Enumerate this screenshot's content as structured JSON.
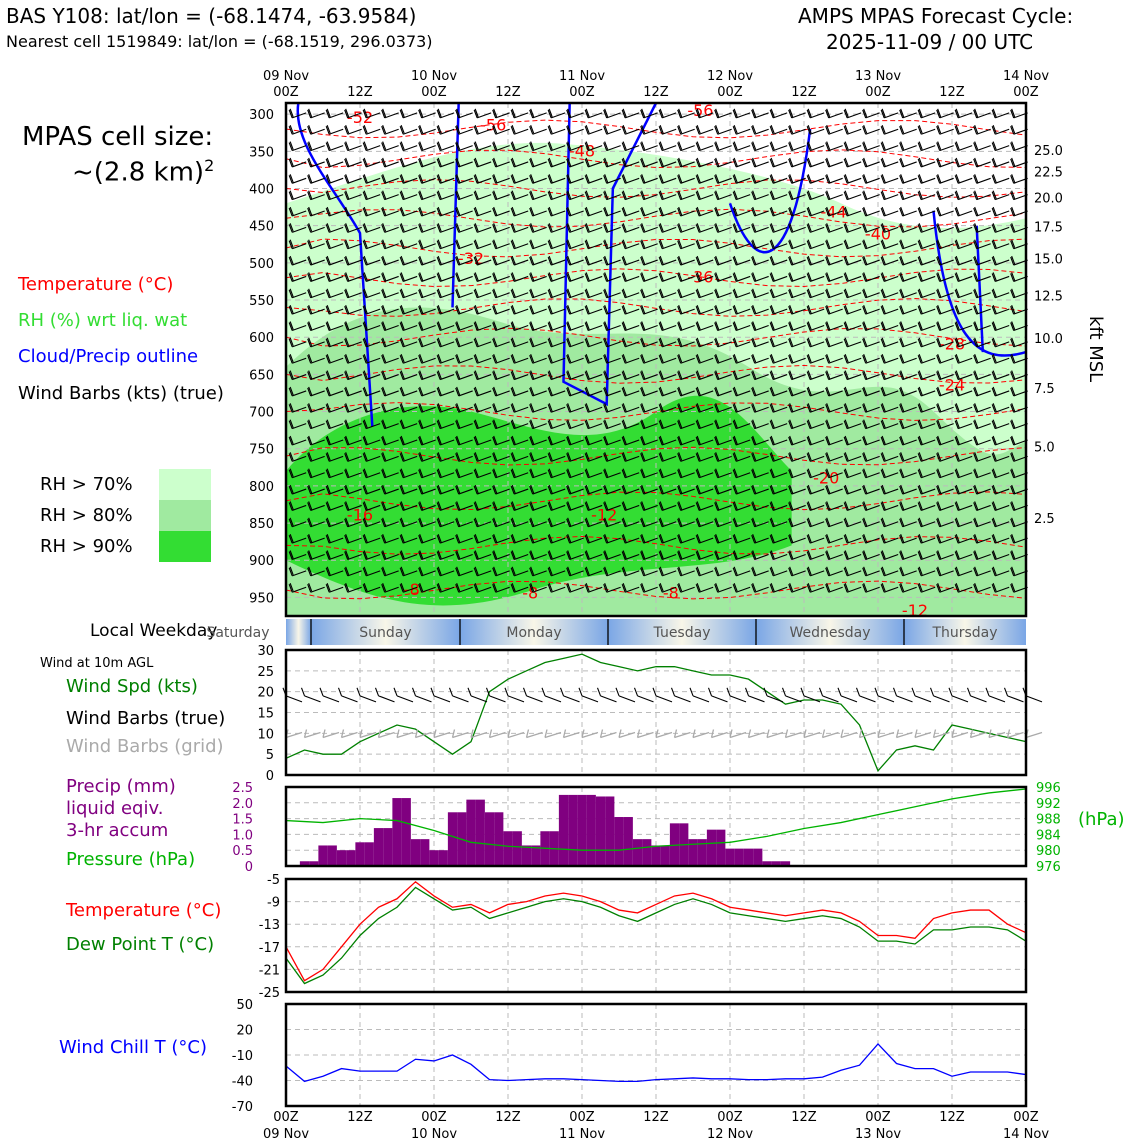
{
  "header": {
    "station": "BAS Y108: lat/lon = (-68.1474, -63.9584)",
    "nearest": "Nearest cell 1519849: lat/lon = (-68.1519, 296.0373)",
    "cycle_title": "AMPS MPAS Forecast Cycle:",
    "cycle_date": "2025-11-09 / 00 UTC"
  },
  "legend": {
    "cell_size_label": "MPAS cell size:",
    "cell_size_value": "~(2.8 km)",
    "cell_size_exp": "2",
    "temperature": "Temperature (°C)",
    "rh": "RH (%) wrt liq. wat",
    "cloud": "Cloud/Precip outline",
    "wind": "Wind Barbs (kts) (true)",
    "rh70": "RH > 70%",
    "rh80": "RH > 80%",
    "rh90": "RH > 90%",
    "weekday_label": "Local Weekday",
    "wind10m": "Wind at 10m AGL",
    "wind_spd": "Wind Spd (kts)",
    "wind_barbs_true": "Wind Barbs (true)",
    "wind_barbs_grid": "Wind Barbs (grid)",
    "precip_1": "Precip (mm)",
    "precip_2": "liquid eqiv.",
    "precip_3": "3-hr accum",
    "pressure": "Pressure (hPa)",
    "hpa_unit": "(hPa)",
    "temp2": "Temperature (°C)",
    "dewpoint": "Dew Point T (°C)",
    "windchill": "Wind Chill T (°C)",
    "kft_label": "kft MSL"
  },
  "colors": {
    "temp": "#ff0000",
    "rh": "#33dd33",
    "cloud": "#0000ff",
    "precip": "#800080",
    "pressure": "#00b300",
    "dew": "#008000",
    "chill": "#0000ff",
    "grid_barb": "#aaaaaa",
    "rh70": "#ccffcc",
    "rh80": "#a0eaa0",
    "rh90": "#33dd33"
  },
  "chart_data": {
    "time_axis": {
      "ticks_top": [
        [
          "09 Nov",
          "00Z"
        ],
        [
          "",
          "12Z"
        ],
        [
          "10 Nov",
          "00Z"
        ],
        [
          "",
          "12Z"
        ],
        [
          "11 Nov",
          "00Z"
        ],
        [
          "",
          "12Z"
        ],
        [
          "12 Nov",
          "00Z"
        ],
        [
          "",
          "12Z"
        ],
        [
          "13 Nov",
          "00Z"
        ],
        [
          "",
          "12Z"
        ],
        [
          "14 Nov",
          "00Z"
        ]
      ],
      "ticks_bottom": [
        "00Z",
        "12Z",
        "00Z",
        "12Z",
        "00Z",
        "12Z",
        "00Z",
        "12Z",
        "00Z",
        "12Z",
        "00Z"
      ],
      "dates_bottom": [
        "09 Nov",
        "10 Nov",
        "11 Nov",
        "12 Nov",
        "13 Nov",
        "14 Nov"
      ],
      "hours_range": [
        0,
        120
      ]
    },
    "cross_section": {
      "type": "heatmap",
      "pressure_ticks": [
        300,
        350,
        400,
        450,
        500,
        550,
        600,
        650,
        700,
        750,
        800,
        850,
        900,
        950
      ],
      "ylim": [
        285,
        975
      ],
      "kft_ticks": [
        [
          "25.0",
          348
        ],
        [
          "22.5",
          377
        ],
        [
          "20.0",
          412
        ],
        [
          "17.5",
          451
        ],
        [
          "15.0",
          494
        ],
        [
          "12.5",
          544
        ],
        [
          "10.0",
          601
        ],
        [
          "7.5",
          668
        ],
        [
          "5.0",
          747
        ],
        [
          "2.5",
          843
        ]
      ],
      "temp_labels": [
        [
          "-52",
          10,
          305
        ],
        [
          "-56",
          28,
          315
        ],
        [
          "-48",
          40,
          350
        ],
        [
          "-56",
          56,
          296
        ],
        [
          "-44",
          74,
          432
        ],
        [
          "-40",
          80,
          462
        ],
        [
          "-36",
          56,
          520
        ],
        [
          "-32",
          25,
          495
        ],
        [
          "-28",
          90,
          610
        ],
        [
          "-24",
          90,
          665
        ],
        [
          "-20",
          73,
          790
        ],
        [
          "-16",
          10,
          840
        ],
        [
          "-12",
          43,
          840
        ],
        [
          "-8",
          17,
          940
        ],
        [
          "-8",
          33,
          945
        ],
        [
          "-8",
          52,
          945
        ],
        [
          "-12",
          85,
          968
        ]
      ]
    },
    "weekdays": [
      "Saturday",
      "Sunday",
      "Monday",
      "Tuesday",
      "Wednesday",
      "Thursday"
    ],
    "wind10m": {
      "type": "line",
      "ylim": [
        0,
        30
      ],
      "yticks": [
        0,
        5,
        10,
        15,
        20,
        25,
        30
      ],
      "x": [
        0,
        3,
        6,
        9,
        12,
        15,
        18,
        21,
        24,
        27,
        30,
        33,
        36,
        39,
        42,
        45,
        48,
        51,
        54,
        57,
        60,
        63,
        66,
        69,
        72,
        75,
        78,
        81,
        84,
        87,
        90,
        93,
        96,
        99,
        102,
        105,
        108,
        111,
        114,
        117,
        120
      ],
      "speed": [
        4,
        6,
        5,
        5,
        8,
        10,
        12,
        11,
        8,
        5,
        8,
        20,
        23,
        25,
        27,
        28,
        29,
        27,
        26,
        25,
        26,
        26,
        25,
        24,
        24,
        23,
        20,
        17,
        18,
        18,
        17,
        12,
        1,
        6,
        7,
        6,
        12,
        11,
        10,
        9,
        8
      ]
    },
    "precip_pressure": {
      "type": "bar",
      "precip_ylim": [
        0,
        2.5
      ],
      "precip_ticks": [
        "0",
        "0.5",
        "1.0",
        "1.5",
        "2.0",
        "2.5"
      ],
      "pressure_ylim": [
        976,
        996
      ],
      "pressure_ticks": [
        "996",
        "992",
        "988",
        "984",
        "980",
        "976"
      ],
      "precip_x": [
        3,
        4.5,
        6,
        7.5,
        9,
        10.5,
        12,
        13.5,
        15,
        16.5,
        18,
        19.5,
        21,
        22.5,
        24,
        25.5,
        27,
        28.5,
        30,
        31.5,
        33,
        34.5,
        36,
        37.5,
        39,
        40.5,
        42,
        43.5,
        45,
        46.5,
        48,
        49.5,
        51,
        52.5,
        54,
        55.5,
        57,
        58.5,
        60,
        61.5,
        63,
        64.5,
        66,
        67.5,
        69,
        70.5,
        72,
        73.5,
        75,
        76.5,
        78,
        79.5,
        81
      ],
      "precip": [
        0.15,
        0.15,
        0.65,
        0.65,
        0.5,
        0.5,
        0.75,
        0.75,
        1.2,
        1.2,
        2.15,
        2.15,
        0.85,
        0.85,
        0.5,
        0.5,
        1.7,
        1.7,
        2.1,
        2.1,
        1.7,
        1.7,
        1.1,
        1.1,
        0.65,
        0.65,
        1.1,
        1.1,
        2.25,
        2.25,
        2.25,
        2.25,
        2.2,
        2.2,
        1.55,
        1.55,
        0.85,
        0.85,
        0.65,
        0.65,
        1.35,
        1.35,
        0.85,
        0.85,
        1.15,
        1.15,
        0.55,
        0.55,
        0.55,
        0.55,
        0.15,
        0.15,
        0.15
      ],
      "pressure_x": [
        0,
        6,
        12,
        18,
        24,
        30,
        36,
        42,
        48,
        54,
        60,
        66,
        72,
        78,
        84,
        90,
        96,
        102,
        108,
        114,
        120
      ],
      "pressure": [
        987.5,
        987,
        988,
        987.5,
        985,
        982,
        981,
        980.5,
        980,
        980,
        981,
        981.5,
        982,
        983.5,
        985.5,
        987,
        989,
        991,
        993,
        994.5,
        995.5
      ]
    },
    "temperature": {
      "type": "line",
      "ylim": [
        -25,
        -5
      ],
      "yticks": [
        "-5",
        "-9",
        "-13",
        "-17",
        "-21",
        "-25"
      ],
      "x": [
        0,
        3,
        6,
        9,
        12,
        15,
        18,
        21,
        24,
        27,
        30,
        33,
        36,
        39,
        42,
        45,
        48,
        51,
        54,
        57,
        60,
        63,
        66,
        69,
        72,
        75,
        78,
        81,
        84,
        87,
        90,
        93,
        96,
        99,
        102,
        105,
        108,
        111,
        114,
        117,
        120
      ],
      "temp": [
        -17,
        -23,
        -21,
        -17,
        -13,
        -10,
        -8.5,
        -5.5,
        -8,
        -10,
        -9.5,
        -11,
        -9.5,
        -9,
        -8,
        -7.5,
        -8,
        -9,
        -10.5,
        -11,
        -9.5,
        -8,
        -7.5,
        -8.5,
        -10,
        -10.5,
        -11,
        -11.5,
        -11,
        -10.5,
        -11,
        -12.5,
        -15,
        -15,
        -15.5,
        -12,
        -11,
        -10.5,
        -10.5,
        -13,
        -14.5
      ],
      "dew": [
        -19,
        -23.5,
        -22,
        -19,
        -15,
        -12,
        -10,
        -6.5,
        -8.5,
        -10.5,
        -10,
        -12,
        -11,
        -10,
        -9,
        -8.5,
        -9,
        -10,
        -11.5,
        -12.5,
        -11,
        -9.5,
        -8.5,
        -9.5,
        -11,
        -11.5,
        -12,
        -12.5,
        -12,
        -11.5,
        -12,
        -13.5,
        -16,
        -16,
        -16.5,
        -14,
        -14,
        -13.5,
        -13.5,
        -14,
        -16
      ]
    },
    "windchill": {
      "type": "line",
      "ylim": [
        -70,
        50
      ],
      "yticks": [
        "50",
        "20",
        "-10",
        "-40",
        "-70"
      ],
      "x": [
        0,
        3,
        6,
        9,
        12,
        15,
        18,
        21,
        24,
        27,
        30,
        33,
        36,
        39,
        42,
        45,
        48,
        51,
        54,
        57,
        60,
        63,
        66,
        69,
        72,
        75,
        78,
        81,
        84,
        87,
        90,
        93,
        96,
        99,
        102,
        105,
        108,
        111,
        114,
        117,
        120
      ],
      "chill": [
        -23,
        -41,
        -35,
        -26,
        -29,
        -29,
        -29,
        -15,
        -17,
        -10,
        -21,
        -39,
        -40,
        -39,
        -38,
        -38,
        -39,
        -40,
        -41,
        -41,
        -39,
        -38,
        -37,
        -38,
        -38,
        -39,
        -39,
        -38,
        -38,
        -36,
        -28,
        -22,
        3,
        -20,
        -26,
        -26,
        -35,
        -30,
        -30,
        -30,
        -33
      ]
    }
  }
}
